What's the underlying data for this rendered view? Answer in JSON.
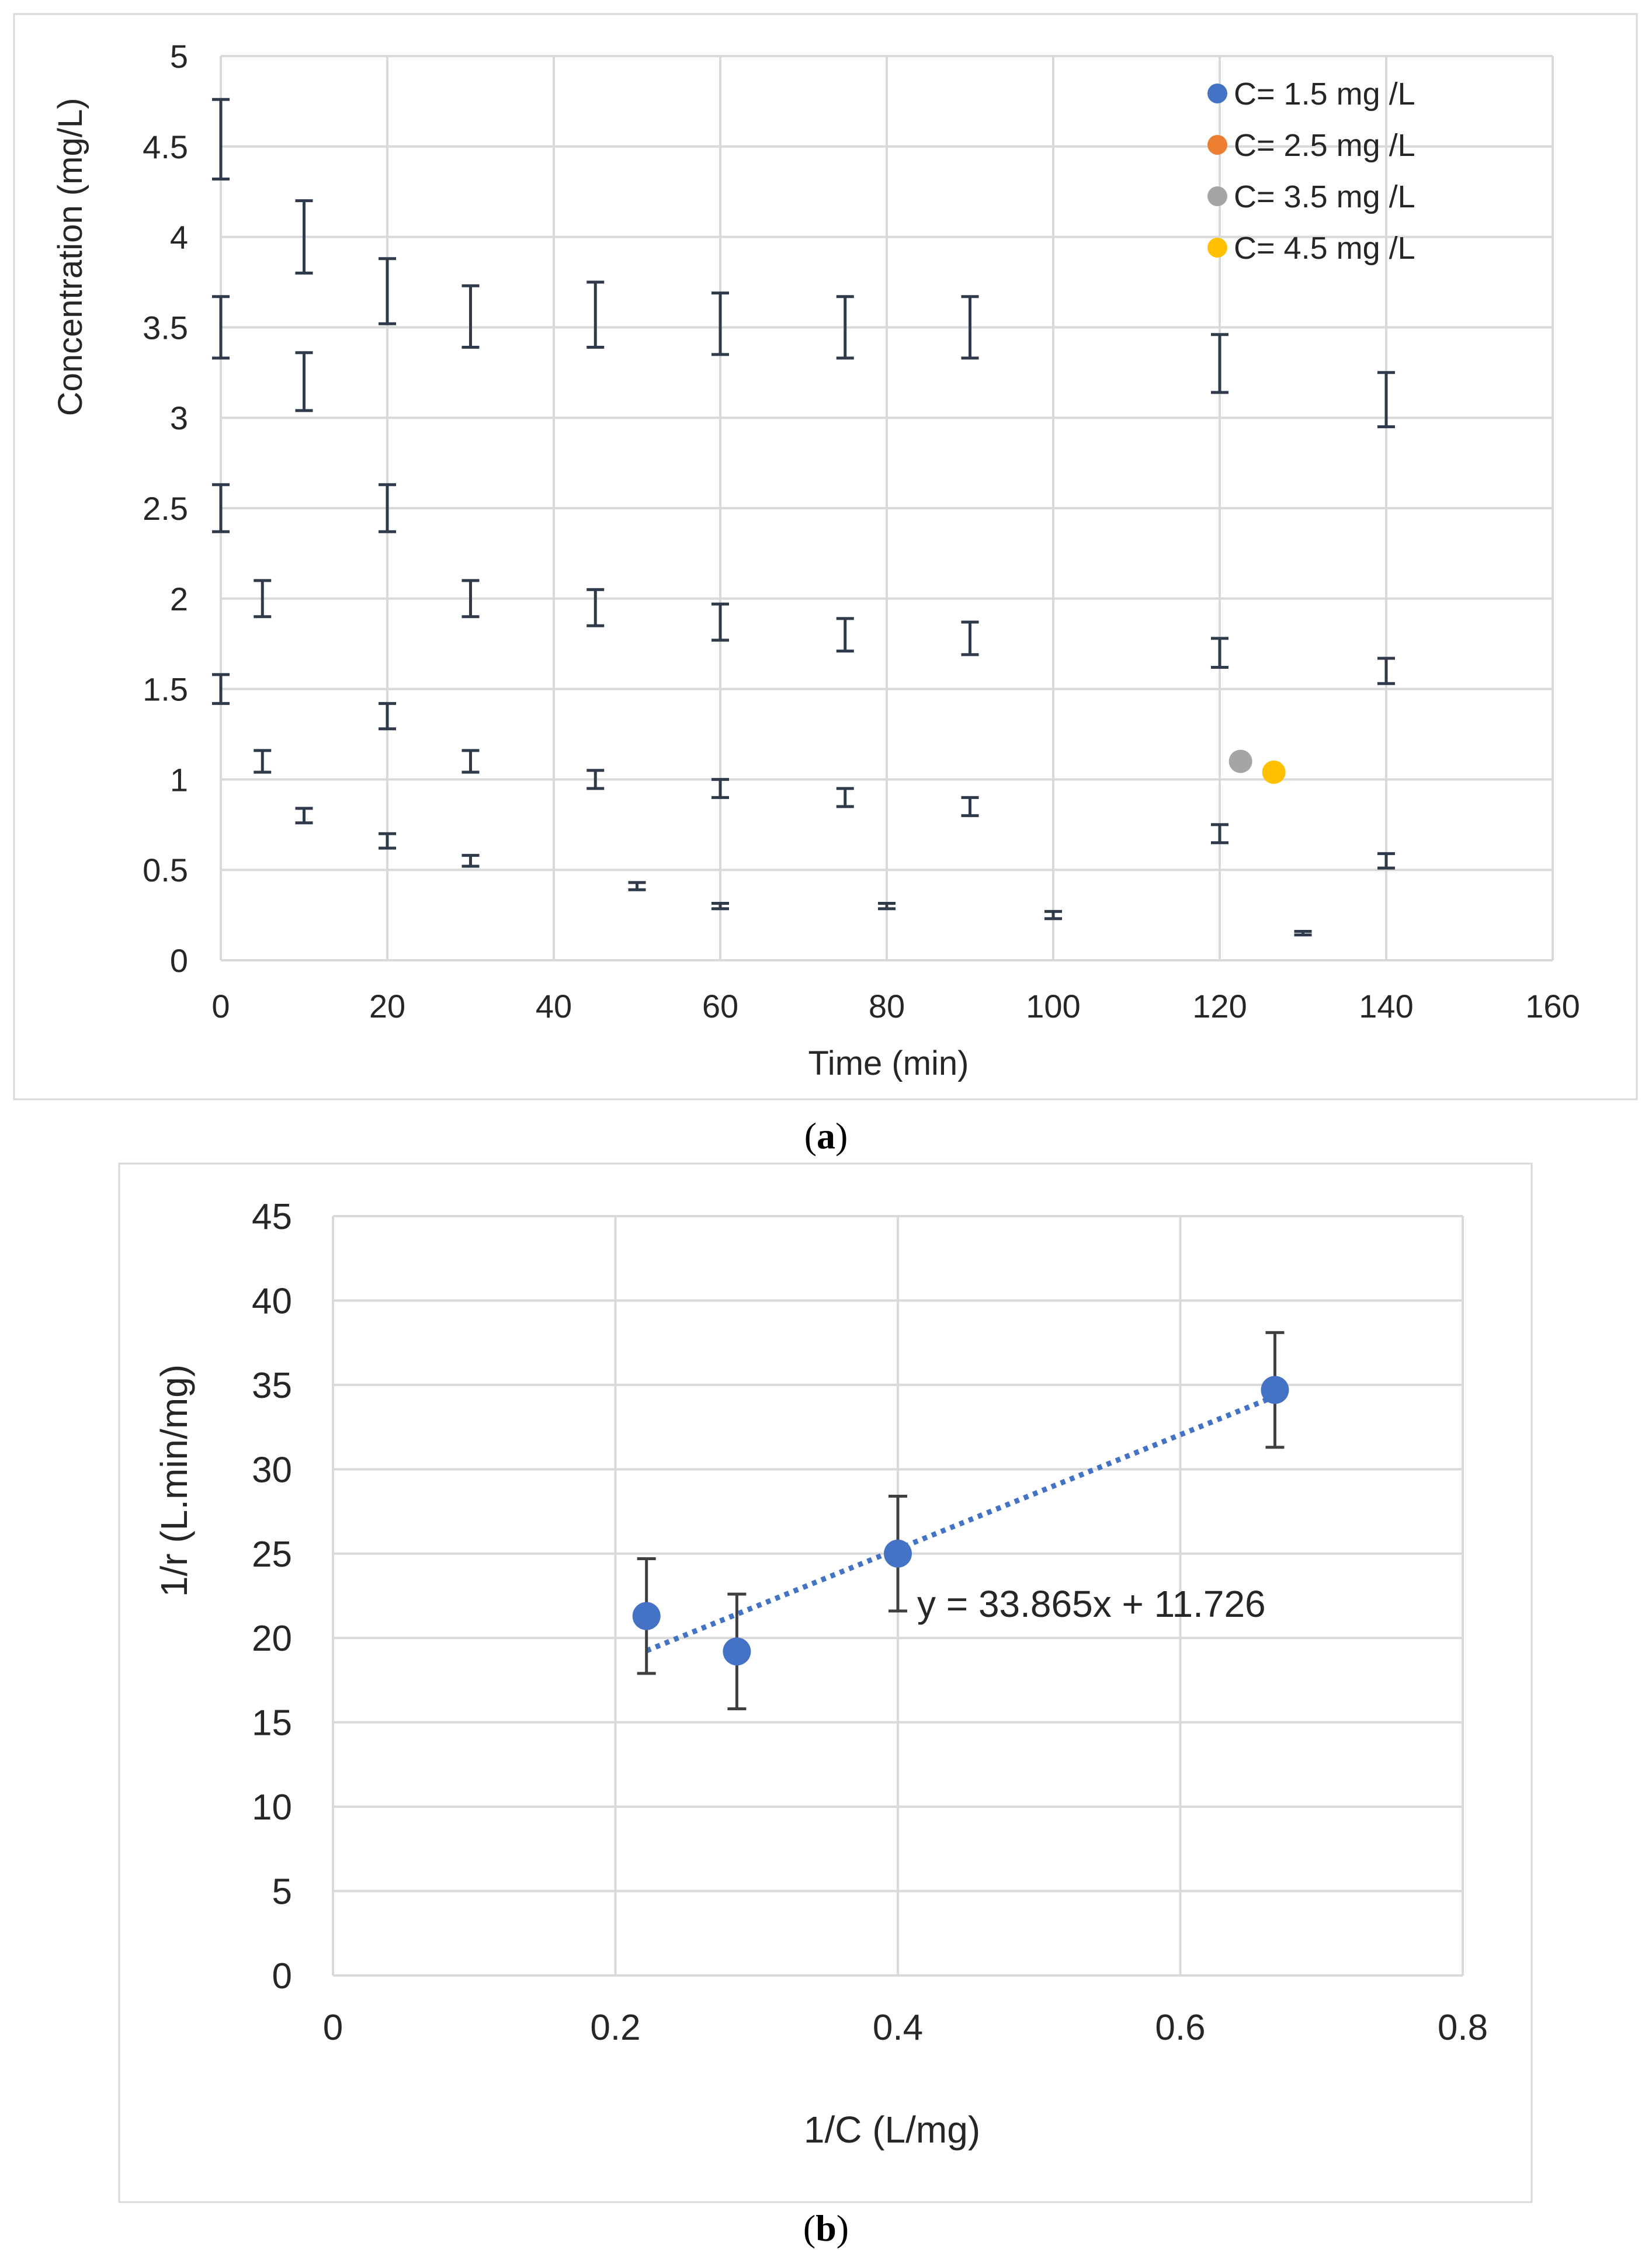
{
  "chart_data": [
    {
      "id": "a",
      "type": "scatter",
      "caption_letter": "a",
      "xlabel": "Time (min)",
      "ylabel": "Concentration (mg/L)",
      "xlim": [
        0,
        160
      ],
      "ylim": [
        0,
        5
      ],
      "xticks": [
        "0",
        "20",
        "40",
        "60",
        "80",
        "100",
        "120",
        "140",
        "160"
      ],
      "yticks": [
        "0",
        "0.5",
        "1",
        "1.5",
        "2",
        "2.5",
        "3",
        "3.5",
        "4",
        "4.5",
        "5"
      ],
      "grid": true,
      "legend_position": "top-right",
      "series": [
        {
          "name": "C= 1.5 mg /L",
          "color": "#4472C4",
          "points": [
            [
              0,
              1.5
            ],
            [
              10,
              0.8
            ],
            [
              20,
              0.66
            ],
            [
              30,
              0.55
            ],
            [
              50,
              0.41
            ],
            [
              60,
              0.3
            ],
            [
              80,
              0.3
            ],
            [
              100,
              0.25
            ],
            [
              120,
              0.7
            ],
            [
              130,
              0.15
            ],
            [
              140,
              0.55
            ]
          ],
          "errors": [
            0.08,
            0.04,
            0.04,
            0.03,
            0.02,
            0.015,
            0.015,
            0.02,
            0.05,
            0.01,
            0.04
          ]
        },
        {
          "name": "C= 2.5 mg /L",
          "color": "#ED7D31",
          "points": [
            [
              0,
              2.5
            ],
            [
              5,
              1.1
            ],
            [
              20,
              1.35
            ],
            [
              30,
              1.1
            ],
            [
              45,
              1.0
            ],
            [
              60,
              0.95
            ],
            [
              75,
              0.9
            ],
            [
              90,
              0.85
            ],
            [
              120,
              1.1
            ],
            [
              126,
              1.05
            ]
          ],
          "errors": [
            0.13,
            0.06,
            0.07,
            0.06,
            0.05,
            0.05,
            0.05,
            0.05,
            0.0,
            0.0
          ]
        },
        {
          "name": "C= 3.5 mg /L",
          "color": "#A5A5A5",
          "points": [
            [
              0,
              3.5
            ],
            [
              10,
              3.2
            ],
            [
              20,
              2.5
            ],
            [
              30,
              2.0
            ],
            [
              45,
              1.95
            ],
            [
              60,
              1.87
            ],
            [
              75,
              1.8
            ],
            [
              90,
              1.78
            ],
            [
              120,
              1.7
            ],
            [
              140,
              1.6
            ]
          ],
          "errors": [
            0.17,
            0.16,
            0.13,
            0.1,
            0.1,
            0.1,
            0.09,
            0.09,
            0.08,
            0.07
          ],
          "extra_box": [
            5,
            2.0,
            0.1
          ]
        },
        {
          "name": "C= 4.5 mg /L",
          "color": "#FFC000",
          "points": [
            [
              0,
              4.54
            ],
            [
              10,
              4.0
            ],
            [
              20,
              3.7
            ],
            [
              30,
              3.56
            ],
            [
              45,
              3.57
            ],
            [
              60,
              3.52
            ],
            [
              75,
              3.5
            ],
            [
              90,
              3.5
            ],
            [
              120,
              3.3
            ],
            [
              140,
              3.1
            ]
          ],
          "errors": [
            0.22,
            0.2,
            0.18,
            0.17,
            0.18,
            0.17,
            0.17,
            0.17,
            0.16,
            0.15
          ]
        }
      ],
      "visible_markers": [
        {
          "x": 122.5,
          "y": 1.1,
          "color": "#A5A5A5"
        },
        {
          "x": 126.5,
          "y": 1.04,
          "color": "#FFC000"
        }
      ]
    },
    {
      "id": "b",
      "type": "scatter",
      "caption_letter": "b",
      "xlabel": "1/C (L/mg)",
      "ylabel": "1/r (L.min/mg)",
      "xlim": [
        0,
        0.8
      ],
      "ylim": [
        0,
        45
      ],
      "xticks": [
        "0",
        "0.2",
        "0.4",
        "0.6",
        "0.8"
      ],
      "yticks": [
        "0",
        "5",
        "10",
        "15",
        "20",
        "25",
        "30",
        "35",
        "40",
        "45"
      ],
      "grid": true,
      "color": "#4472C4",
      "x": [
        0.222,
        0.286,
        0.4,
        0.667
      ],
      "y": [
        21.3,
        19.2,
        25.0,
        34.7
      ],
      "errors": [
        3.4,
        3.4,
        3.4,
        3.4
      ],
      "trendline": {
        "slope": 33.865,
        "intercept": 11.726,
        "x_range": [
          0.222,
          0.667
        ],
        "style": "dotted"
      },
      "equation": "y = 33.865x + 11.726"
    }
  ]
}
